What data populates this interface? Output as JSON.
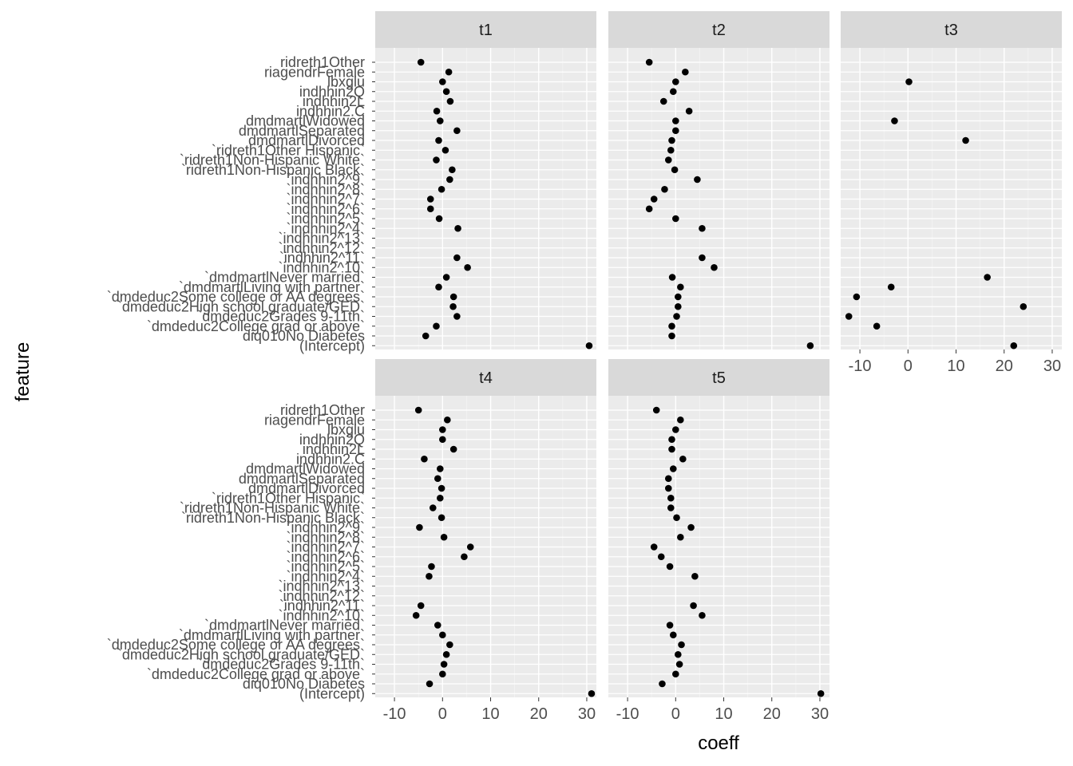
{
  "chart_data": {
    "type": "scatter",
    "xlabel": "coeff",
    "ylabel": "feature",
    "xlim": [
      -14,
      32
    ],
    "xticks": [
      -10,
      0,
      10,
      20,
      30
    ],
    "xtick_labels": [
      "-10",
      "0",
      "10",
      "20",
      "30"
    ],
    "features": [
      "ridreth1Other",
      "riagendrFemale",
      "lbxglu",
      "indhhin2Q",
      "indhhin2L",
      "indhhin2.C",
      "dmdmartlWidowed",
      "dmdmartlSeparated",
      "dmdmartlDivorced",
      "`ridreth1Other Hispanic`",
      "`ridreth1Non-Hispanic White`",
      "`ridreth1Non-Hispanic Black`",
      "`indhhin2^9`",
      "`indhhin2^8`",
      "`indhhin2^7`",
      "`indhhin2^6`",
      "`indhhin2^5`",
      "`indhhin2^4`",
      "`indhhin2^13`",
      "`indhhin2^12`",
      "`indhhin2^11`",
      "`indhhin2^10`",
      "`dmdmartlNever married`",
      "`dmdmartlLiving with partner`",
      "`dmdeduc2Some college or AA degrees`",
      "`dmdeduc2High school graduate/GED`",
      "`dmdeduc2Grades 9-11th`",
      "`dmdeduc2College grad or above`",
      "diq010No Diabetes",
      "(Intercept)"
    ],
    "panels": [
      {
        "name": "t1",
        "values": [
          -4.5,
          1.3,
          0,
          0.8,
          1.6,
          -1.2,
          -0.5,
          3,
          -0.8,
          0.6,
          -1.3,
          2,
          1.5,
          -0.2,
          -2.5,
          -2.5,
          -0.7,
          3.2,
          null,
          null,
          3,
          5.2,
          0.8,
          -0.8,
          2.3,
          2.2,
          3,
          -1.3,
          -3.5,
          30.5
        ]
      },
      {
        "name": "t2",
        "values": [
          -5.5,
          2,
          0,
          -0.5,
          -2.5,
          2.8,
          0,
          0,
          -0.8,
          -1,
          -1.5,
          -0.2,
          4.5,
          -2.3,
          -4.5,
          -5.5,
          0,
          5.5,
          null,
          null,
          5.5,
          8,
          -0.7,
          1,
          0.5,
          0.5,
          0.2,
          -0.8,
          -0.8,
          28
        ]
      },
      {
        "name": "t3",
        "values": [
          null,
          null,
          0.2,
          null,
          null,
          null,
          -2.8,
          null,
          12,
          null,
          null,
          null,
          null,
          null,
          null,
          null,
          null,
          null,
          null,
          null,
          null,
          null,
          16.5,
          -3.5,
          -10.7,
          24,
          -12.3,
          -6.5,
          null,
          22
        ]
      },
      {
        "name": "t4",
        "values": [
          -5,
          1,
          0,
          0,
          2.3,
          -3.8,
          -0.5,
          -1,
          -0.2,
          -0.5,
          -2,
          -0.2,
          -4.8,
          0.3,
          5.8,
          4.5,
          -2.3,
          -2.8,
          null,
          null,
          -4.5,
          -5.5,
          -1,
          0,
          1.5,
          0.8,
          0.3,
          0,
          -2.7,
          31
        ]
      },
      {
        "name": "t5",
        "values": [
          -4,
          1,
          0,
          -0.8,
          -0.8,
          1.5,
          -0.5,
          -1.5,
          -1.5,
          -1,
          -1,
          0.2,
          3.2,
          1,
          -4.5,
          -3,
          -1.2,
          4,
          null,
          null,
          3.7,
          5.5,
          -1.2,
          -0.5,
          1.2,
          0.5,
          0.8,
          0,
          -2.8,
          30.2
        ]
      }
    ]
  }
}
